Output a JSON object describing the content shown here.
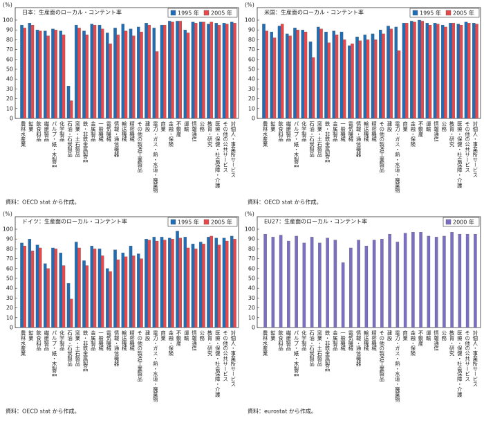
{
  "chart_data": [
    {
      "type": "bar",
      "title": "日本：生産面のローカル・コンテント率",
      "ylabel": "(%)",
      "source": "資料：OECD stat から作成。",
      "categories": [
        "農林水産業",
        "鉱業",
        "飲食料品",
        "繊維製品",
        "パルプ・紙・木製品",
        "化学製品",
        "石油・石炭製品",
        "窯業・土石製品",
        "鉄・非鉄金属製品",
        "金属製品",
        "一般機械",
        "電気機械",
        "情報・通信機器",
        "輸送機械",
        "精密機械",
        "その他の製造工業製品",
        "建設",
        "電力・ガス・熱・水道・廃棄物",
        "商業",
        "金融・保険",
        "不動産",
        "運輸",
        "情報通信",
        "公務",
        "教育・研究",
        "医療・保健・社会保障・介護",
        "その他の公共サービス",
        "対個人・事業所サービス"
      ],
      "series": [
        {
          "name": "1995 年",
          "color": "#1f6db5",
          "values": [
            95,
            97,
            90,
            89,
            91,
            89,
            33,
            95,
            89,
            96,
            95,
            87,
            92,
            96,
            91,
            93,
            97,
            92,
            95,
            99,
            99,
            90,
            98,
            98,
            96,
            97,
            97,
            98
          ]
        },
        {
          "name": "2005 年",
          "color": "#e8474c",
          "values": [
            92,
            95,
            89,
            84,
            90,
            85,
            18,
            92,
            85,
            95,
            91,
            76,
            85,
            89,
            84,
            88,
            95,
            68,
            95,
            98,
            99,
            87,
            97,
            98,
            98,
            95,
            96,
            97
          ]
        }
      ],
      "ylim": [
        0,
        100
      ],
      "yticks": [
        0,
        10,
        20,
        30,
        40,
        50,
        60,
        70,
        80,
        90,
        100
      ],
      "legend": "upper right"
    },
    {
      "type": "bar",
      "title": "米国：生産面のローカル・コンテント率",
      "ylabel": "(%)",
      "source": "資料：OECD stat から作成。",
      "categories": [
        "農林水産業",
        "鉱業",
        "飲食料品",
        "繊維製品",
        "パルプ・紙・木製品",
        "化学製品",
        "石油・石炭製品",
        "窯業・土石製品",
        "鉄・非鉄金属製品",
        "金属製品",
        "一般機械",
        "電気機械",
        "情報・通信機器",
        "輸送機械",
        "精密機械",
        "その他の製造工業製品",
        "建設",
        "電力・ガス・熱・水道・廃棄物",
        "商業",
        "金融・保険",
        "不動産",
        "運輸",
        "情報通信",
        "公務",
        "教育・研究",
        "医療・保健・社会保障・介護",
        "その他の公共サービス",
        "対個人・事業所サービス"
      ],
      "series": [
        {
          "name": "1995 年",
          "color": "#1f6db5",
          "values": [
            96,
            88,
            94,
            86,
            92,
            90,
            78,
            93,
            88,
            89,
            88,
            74,
            83,
            85,
            86,
            90,
            94,
            93,
            97,
            99,
            100,
            97,
            97,
            95,
            97,
            96,
            98,
            97
          ]
        },
        {
          "name": "2005 年",
          "color": "#e8474c",
          "values": [
            89,
            82,
            96,
            84,
            90,
            88,
            62,
            91,
            77,
            85,
            80,
            76,
            79,
            80,
            80,
            86,
            91,
            69,
            97,
            98,
            99,
            95,
            96,
            93,
            97,
            95,
            97,
            96
          ]
        }
      ],
      "ylim": [
        0,
        100
      ],
      "yticks": [
        0,
        10,
        20,
        30,
        40,
        50,
        60,
        70,
        80,
        90,
        100
      ],
      "legend": "upper right"
    },
    {
      "type": "bar",
      "title": "ドイツ：生産面のローカル・コンテント率",
      "ylabel": "(%)",
      "source": "資料：OECD stat から作成。",
      "categories": [
        "農林水産業",
        "鉱業",
        "飲食料品",
        "繊維製品",
        "パルプ・紙・木製品",
        "化学製品",
        "石油・石炭製品",
        "窯業・土石製品",
        "鉄・非鉄金属製品",
        "金属製品",
        "一般機械",
        "電気機械",
        "情報・通信機器",
        "輸送機械",
        "精密機械",
        "その他の製造工業製品",
        "建設",
        "電力・ガス・熱・水道・廃棄物",
        "商業",
        "金融・保険",
        "不動産",
        "運輸",
        "情報通信",
        "公務",
        "教育・研究",
        "医療・保健・社会保障・介護",
        "その他の公共サービス",
        "対個人・事業所サービス"
      ],
      "series": [
        {
          "name": "1995 年",
          "color": "#1f6db5",
          "values": [
            86,
            90,
            84,
            65,
            81,
            76,
            45,
            87,
            68,
            83,
            80,
            60,
            79,
            76,
            83,
            75,
            90,
            92,
            92,
            91,
            98,
            92,
            85,
            87,
            92,
            91,
            91,
            93
          ]
        },
        {
          "name": "2005 年",
          "color": "#e8474c",
          "values": [
            83,
            78,
            81,
            60,
            80,
            63,
            29,
            81,
            63,
            80,
            73,
            57,
            69,
            72,
            73,
            70,
            89,
            88,
            89,
            90,
            91,
            81,
            80,
            85,
            93,
            84,
            88,
            90
          ]
        }
      ],
      "ylim": [
        0,
        100
      ],
      "yticks": [
        0,
        10,
        20,
        30,
        40,
        50,
        60,
        70,
        80,
        90,
        100
      ],
      "legend": "upper right"
    },
    {
      "type": "bar",
      "title": "EU27：生産面のローカル・コンテント率",
      "ylabel": "(%)",
      "source": "資料：eurostat から作成。",
      "categories": [
        "農林水産業",
        "鉱業",
        "飲食料品",
        "繊維製品",
        "パルプ・紙・木製品",
        "化学製品",
        "石油・石炭製品",
        "窯業・土石製品",
        "鉄・非鉄金属製品",
        "金属製品",
        "一般機械",
        "電気機械",
        "情報・通信機器",
        "輸送機械",
        "精密機械",
        "その他の製造工業製品",
        "建設",
        "電力・ガス・熱・水道・廃棄物",
        "商業",
        "金融・保険",
        "不動産",
        "運輸",
        "情報通信",
        "公務",
        "教育・研究",
        "医療・保健・社会保障・介護",
        "その他の公共サービス",
        "対個人・事業所サービス"
      ],
      "series": [
        {
          "name": "2000 年",
          "color": "#7a6fc2",
          "values": [
            95,
            92,
            94,
            88,
            93,
            86,
            92,
            86,
            91,
            89,
            66,
            81,
            89,
            83,
            89,
            90,
            95,
            87,
            96,
            97,
            97,
            93,
            92,
            93,
            97,
            95,
            95,
            95
          ]
        }
      ],
      "ylim": [
        0,
        100
      ],
      "yticks": [
        0,
        10,
        20,
        30,
        40,
        50,
        60,
        70,
        80,
        90,
        100
      ],
      "legend": "upper right"
    }
  ]
}
